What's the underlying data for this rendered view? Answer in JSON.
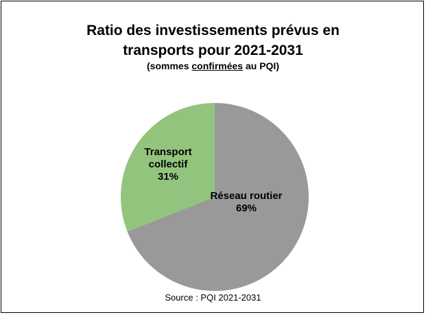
{
  "title_lines": [
    "Ratio des investissements prévus en",
    "transports pour 2021-2031"
  ],
  "subtitle": {
    "before": "(sommes ",
    "underlined": "confirmées",
    "after": " au PQI)"
  },
  "source": "Source : PQI 2021-2031",
  "colors": {
    "Réseau routier": "#999999",
    "Transport collectif": "#93c47d"
  },
  "chart_data": {
    "type": "pie",
    "title": "Ratio des investissements prévus en transports pour 2021-2031",
    "subtitle": "(sommes confirmées au PQI)",
    "slices": [
      {
        "label": "Réseau routier",
        "value": 69,
        "value_label": "69%"
      },
      {
        "label": "Transport collectif",
        "value": 31,
        "value_label": "31%"
      }
    ],
    "data_label_lines": [
      [
        "Réseau routier",
        "69%"
      ],
      [
        "Transport",
        "collectif",
        "31%"
      ]
    ]
  }
}
